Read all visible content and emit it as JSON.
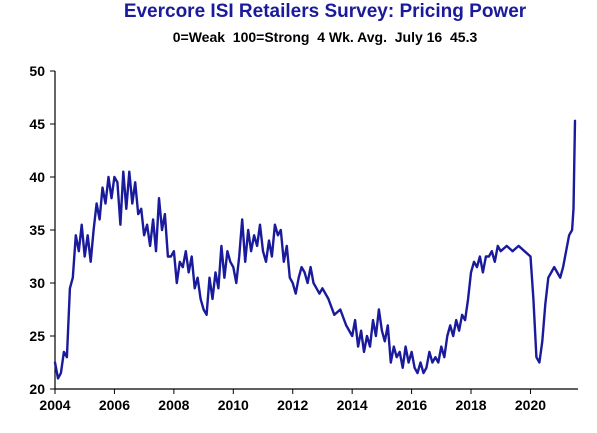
{
  "chart_data": {
    "type": "line",
    "title": "Evercore ISI Retailers Survey: Pricing Power",
    "subtitle": "0=Weak  100=Strong  4 Wk. Avg.  July 16  45.3",
    "xlabel": "",
    "ylabel": "",
    "xlim": [
      2004,
      2021.6
    ],
    "ylim": [
      20,
      50
    ],
    "x_ticks": [
      2004,
      2006,
      2008,
      2010,
      2012,
      2014,
      2016,
      2018,
      2020
    ],
    "y_ticks": [
      20,
      25,
      30,
      35,
      40,
      45,
      50
    ],
    "grid": false,
    "legend": "none",
    "line_color": "#1a1a9c",
    "series": [
      {
        "x": [
          2004.0,
          2004.1,
          2004.2,
          2004.3,
          2004.4,
          2004.5,
          2004.6,
          2004.7,
          2004.8,
          2004.9,
          2005.0,
          2005.1,
          2005.2,
          2005.3,
          2005.4,
          2005.5,
          2005.6,
          2005.7,
          2005.8,
          2005.9,
          2006.0,
          2006.1,
          2006.2,
          2006.3,
          2006.4,
          2006.5,
          2006.6,
          2006.7,
          2006.8,
          2006.9,
          2007.0,
          2007.1,
          2007.2,
          2007.3,
          2007.4,
          2007.5,
          2007.6,
          2007.7,
          2007.8,
          2007.9,
          2008.0,
          2008.1,
          2008.2,
          2008.3,
          2008.4,
          2008.5,
          2008.6,
          2008.7,
          2008.8,
          2008.9,
          2009.0,
          2009.1,
          2009.2,
          2009.3,
          2009.4,
          2009.5,
          2009.6,
          2009.7,
          2009.8,
          2009.9,
          2010.0,
          2010.1,
          2010.2,
          2010.3,
          2010.4,
          2010.5,
          2010.6,
          2010.7,
          2010.8,
          2010.9,
          2011.0,
          2011.1,
          2011.2,
          2011.3,
          2011.4,
          2011.5,
          2011.6,
          2011.7,
          2011.8,
          2011.9,
          2012.0,
          2012.1,
          2012.2,
          2012.3,
          2012.4,
          2012.5,
          2012.6,
          2012.7,
          2012.8,
          2012.9,
          2013.0,
          2013.2,
          2013.4,
          2013.6,
          2013.8,
          2014.0,
          2014.1,
          2014.2,
          2014.3,
          2014.4,
          2014.5,
          2014.6,
          2014.7,
          2014.8,
          2014.9,
          2015.0,
          2015.1,
          2015.2,
          2015.3,
          2015.4,
          2015.5,
          2015.6,
          2015.7,
          2015.8,
          2015.9,
          2016.0,
          2016.1,
          2016.2,
          2016.3,
          2016.4,
          2016.5,
          2016.6,
          2016.7,
          2016.8,
          2016.9,
          2017.0,
          2017.1,
          2017.2,
          2017.3,
          2017.4,
          2017.5,
          2017.6,
          2017.7,
          2017.8,
          2017.9,
          2018.0,
          2018.1,
          2018.2,
          2018.3,
          2018.4,
          2018.5,
          2018.6,
          2018.7,
          2018.8,
          2018.9,
          2019.0,
          2019.2,
          2019.4,
          2019.6,
          2019.8,
          2020.0,
          2020.1,
          2020.2,
          2020.3,
          2020.4,
          2020.5,
          2020.6,
          2020.7,
          2020.8,
          2020.9,
          2021.0,
          2021.1,
          2021.2,
          2021.3,
          2021.4,
          2021.45,
          2021.5
        ],
        "y": [
          22.5,
          21.0,
          21.5,
          23.5,
          23.0,
          29.5,
          30.5,
          34.5,
          33.0,
          35.5,
          32.5,
          34.5,
          32.0,
          35.0,
          37.5,
          36.0,
          39.0,
          37.5,
          40.0,
          38.0,
          40.0,
          39.5,
          35.5,
          40.5,
          37.0,
          40.5,
          37.5,
          39.5,
          36.5,
          37.0,
          34.5,
          35.5,
          33.5,
          36.0,
          33.0,
          38.0,
          35.0,
          36.5,
          32.5,
          32.5,
          33.0,
          30.0,
          32.0,
          31.5,
          33.0,
          31.0,
          32.5,
          29.5,
          30.5,
          28.5,
          27.5,
          27.0,
          30.5,
          28.5,
          31.0,
          29.5,
          33.5,
          30.5,
          33.0,
          32.0,
          31.5,
          30.0,
          32.5,
          36.0,
          32.0,
          35.0,
          33.0,
          34.5,
          33.5,
          35.5,
          33.0,
          32.0,
          34.0,
          32.5,
          35.5,
          34.5,
          35.0,
          32.0,
          33.5,
          30.5,
          30.0,
          29.0,
          30.5,
          31.5,
          31.0,
          30.0,
          31.5,
          30.0,
          29.5,
          29.0,
          29.5,
          28.5,
          27.0,
          27.5,
          26.0,
          25.0,
          26.5,
          24.0,
          25.5,
          23.5,
          25.0,
          24.0,
          26.5,
          25.0,
          27.5,
          25.5,
          24.5,
          26.0,
          22.5,
          24.0,
          23.0,
          23.5,
          22.0,
          24.0,
          22.5,
          23.5,
          22.0,
          21.5,
          22.5,
          21.5,
          22.0,
          23.5,
          22.5,
          23.0,
          22.5,
          24.0,
          23.0,
          25.0,
          26.0,
          25.0,
          26.5,
          25.5,
          27.0,
          26.5,
          28.5,
          31.0,
          32.0,
          31.5,
          32.5,
          31.0,
          32.5,
          32.5,
          33.0,
          32.0,
          33.5,
          33.0,
          33.5,
          33.0,
          33.5,
          33.0,
          32.5,
          28.5,
          23.0,
          22.5,
          24.5,
          28.0,
          30.5,
          31.0,
          31.5,
          31.0,
          30.5,
          31.5,
          33.0,
          34.5,
          35.0,
          37.0,
          45.3
        ]
      }
    ]
  }
}
